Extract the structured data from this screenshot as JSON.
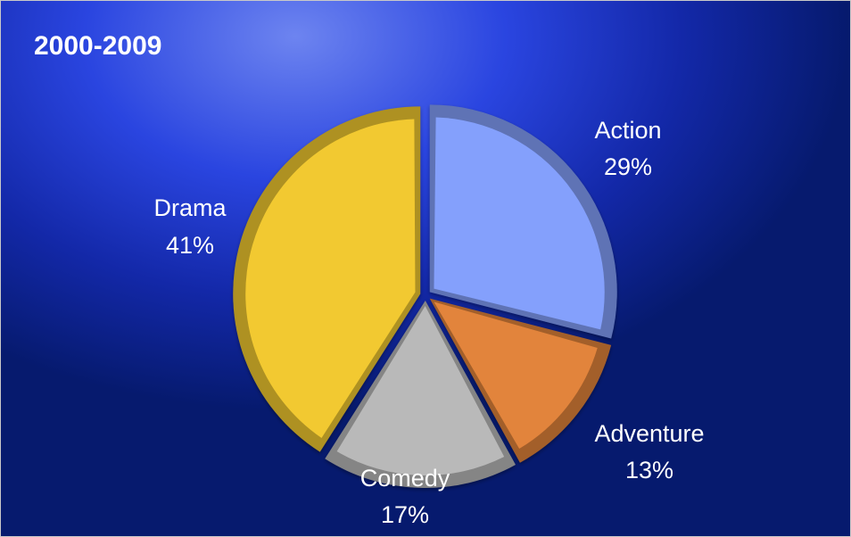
{
  "chart_data": {
    "type": "pie",
    "title": "2000-2009",
    "categories": [
      "Action",
      "Adventure",
      "Comedy",
      "Drama"
    ],
    "values": [
      29,
      13,
      17,
      41
    ],
    "labels": [
      "29%",
      "13%",
      "17%",
      "41%"
    ],
    "colors": [
      "#84a0fc",
      "#e2843c",
      "#b9b9b9",
      "#f2c931"
    ],
    "legend": "none",
    "style": "3d-bevel"
  }
}
